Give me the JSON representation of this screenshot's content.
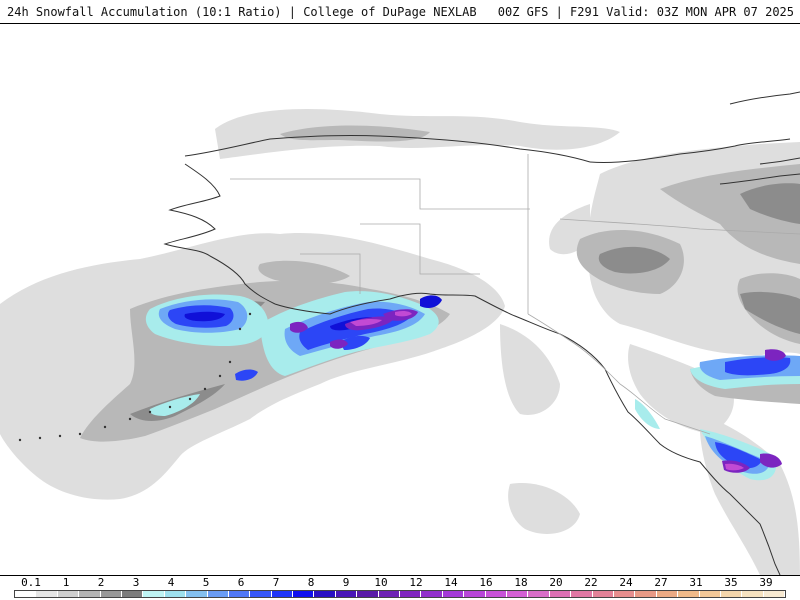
{
  "header": {
    "title_left": "24h Snowfall Accumulation (10:1 Ratio) | College of DuPage NEXLAB",
    "title_right": "00Z GFS | F291 Valid: 03Z MON APR 07 2025"
  },
  "legend": {
    "labels": [
      "0.1",
      "1",
      "2",
      "3",
      "4",
      "5",
      "6",
      "7",
      "8",
      "9",
      "10",
      "12",
      "14",
      "16",
      "18",
      "20",
      "22",
      "24",
      "27",
      "31",
      "35",
      "39"
    ],
    "colors": [
      "#ffffff",
      "#e6e6e6",
      "#cfcfcf",
      "#b4b4b4",
      "#989898",
      "#7c7c7c",
      "#bff4f4",
      "#9ee0ee",
      "#84c0f0",
      "#6a9cf4",
      "#5078f6",
      "#3858f8",
      "#2036f8",
      "#1010ee",
      "#2a10c4",
      "#4a16b8",
      "#5a1aa8",
      "#6e22b4",
      "#8026c0",
      "#9230cc",
      "#a43ad8",
      "#b846d8",
      "#c852d8",
      "#d460d4",
      "#d86ec8",
      "#dc70b4",
      "#e078a4",
      "#e28298",
      "#e68e8e",
      "#e89a86",
      "#ecaa84",
      "#f0ba8a",
      "#f2c898",
      "#f4d6ac",
      "#f6e2c0",
      "#f8ead2"
    ]
  },
  "map": {
    "region": "Alaska, Yukon and British Columbia",
    "colors": {
      "light_gray": "#dedede",
      "mid_gray": "#b8b8b8",
      "dark_gray": "#8c8c8c",
      "cyan": "#a8ecec",
      "light_blue": "#6ea8f6",
      "blue": "#2c46f6",
      "navy": "#1010d8",
      "purple": "#7c24c0",
      "magenta": "#c24ad4",
      "coast": "#333333",
      "border": "#aaaaaa"
    }
  }
}
